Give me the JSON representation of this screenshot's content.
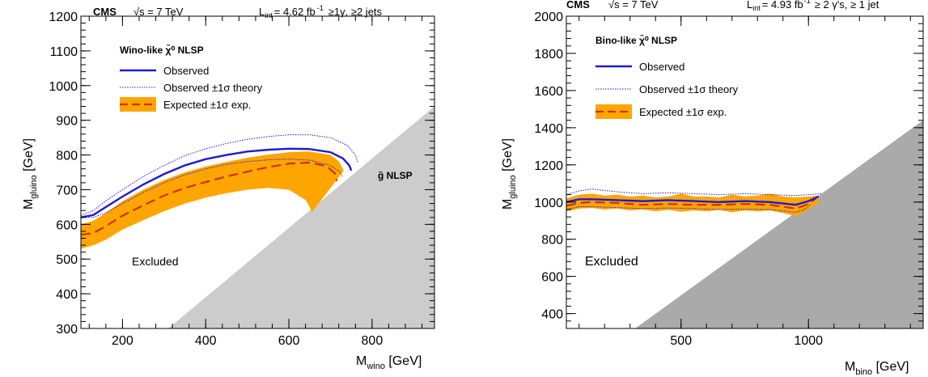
{
  "chart_data": [
    {
      "type": "line",
      "header": {
        "experiment": "CMS",
        "energy": "√s = 7 TeV",
        "lumi": "L",
        "lumi_sub": "int",
        "lumi_val": "= 4.62 fb",
        "lumi_sup": "-1",
        "selection": "≥1γ, ≥2 jets"
      },
      "xlabel": "M",
      "xlabel_sub": "wino",
      "xlabel_unit": " [GeV]",
      "ylabel": "M",
      "ylabel_sub": "gluino",
      "ylabel_unit": " [GeV]",
      "xlim": [
        100,
        950
      ],
      "ylim": [
        300,
        1200
      ],
      "xticks": [
        200,
        400,
        600,
        800
      ],
      "xtick_labels": [
        "200",
        "400",
        "600",
        "800"
      ],
      "yticks": [
        300,
        400,
        500,
        600,
        700,
        800,
        900,
        1000,
        1100,
        1200
      ],
      "ytick_labels": [
        "300",
        "400",
        "500",
        "600",
        "700",
        "800",
        "900",
        "1000",
        "1100",
        "1200"
      ],
      "legend": {
        "title": "Wino-like χ̃⁰ NLSP",
        "observed": "Observed",
        "theory": "Observed ±1σ theory",
        "expected": "Expected ±1σ exp."
      },
      "annotations": {
        "excluded": "Excluded",
        "nlsp": "g̃ NLSP"
      },
      "colors": {
        "observed": "#1b1bd6",
        "expected": "#cc3300",
        "band": "#ffa500",
        "region": "#cccccc"
      },
      "series": [
        {
          "name": "Observed",
          "x": [
            100,
            130,
            160,
            200,
            250,
            300,
            350,
            400,
            450,
            500,
            550,
            600,
            650,
            700,
            730,
            745,
            750
          ],
          "y": [
            620,
            627,
            650,
            680,
            715,
            745,
            770,
            788,
            800,
            810,
            815,
            818,
            817,
            808,
            790,
            770,
            755
          ]
        },
        {
          "name": "Observed ±1σ theory",
          "role": "upper",
          "x": [
            100,
            130,
            160,
            200,
            250,
            300,
            350,
            400,
            450,
            500,
            550,
            600,
            650,
            700,
            740,
            760,
            765
          ],
          "y": [
            625,
            640,
            668,
            700,
            738,
            770,
            798,
            818,
            833,
            845,
            853,
            858,
            858,
            850,
            828,
            800,
            780
          ]
        },
        {
          "name": "Observed ±1σ theory",
          "role": "lower",
          "x": [
            100,
            130,
            160,
            200,
            250,
            300,
            350,
            400,
            450,
            500,
            550,
            600,
            650,
            700,
            722,
            730
          ],
          "y": [
            620,
            620,
            633,
            660,
            692,
            720,
            743,
            760,
            773,
            781,
            786,
            788,
            785,
            770,
            752,
            735
          ]
        },
        {
          "name": "Expected ±1σ exp.",
          "x": [
            100,
            130,
            160,
            200,
            250,
            300,
            350,
            400,
            450,
            500,
            550,
            600,
            650,
            690,
            710,
            715
          ],
          "y": [
            570,
            575,
            595,
            625,
            655,
            683,
            705,
            722,
            738,
            752,
            765,
            775,
            778,
            768,
            748,
            725
          ]
        },
        {
          "name": "band_upper",
          "x": [
            100,
            130,
            160,
            200,
            250,
            300,
            350,
            400,
            450,
            500,
            550,
            600,
            650,
            700,
            720,
            732
          ],
          "y": [
            600,
            610,
            633,
            667,
            700,
            728,
            750,
            767,
            780,
            792,
            801,
            808,
            810,
            800,
            782,
            755
          ]
        },
        {
          "name": "band_lower",
          "x": [
            100,
            130,
            160,
            200,
            250,
            300,
            350,
            400,
            450,
            500,
            550,
            600,
            640,
            650,
            655
          ],
          "y": [
            530,
            540,
            556,
            585,
            612,
            638,
            660,
            677,
            690,
            700,
            705,
            700,
            670,
            650,
            635
          ]
        }
      ],
      "excluded_region": {
        "x": [
          310,
          950,
          950,
          310
        ],
        "y": [
          300,
          940,
          300,
          300
        ]
      }
    },
    {
      "type": "line",
      "header": {
        "experiment": "CMS",
        "energy": "√s = 7 TeV",
        "lumi": "L",
        "lumi_sub": "int",
        "lumi_val": "= 4.93 fb",
        "lumi_sup": "-1",
        "selection": "≥ 2 γ's,  ≥ 1 jet"
      },
      "xlabel": "M",
      "xlabel_sub": "bino",
      "xlabel_unit": " [GeV]",
      "ylabel": "M",
      "ylabel_sub": "gluino",
      "ylabel_unit": " [GeV]",
      "xlim": [
        50,
        1450
      ],
      "ylim": [
        320,
        2000
      ],
      "xticks": [
        500,
        1000
      ],
      "xtick_labels": [
        "500",
        "1000"
      ],
      "yticks": [
        400,
        600,
        800,
        1000,
        1200,
        1400,
        1600,
        1800,
        2000
      ],
      "ytick_labels": [
        "400",
        "600",
        "800",
        "1000",
        "1200",
        "1400",
        "1600",
        "1800",
        "2000"
      ],
      "legend": {
        "title": "Bino-like χ̃⁰ NLSP",
        "observed": "Observed",
        "theory": "Observed ±1σ theory",
        "expected": "Expected ±1σ exp."
      },
      "annotations": {
        "excluded": "Excluded"
      },
      "colors": {
        "observed": "#1b1bd6",
        "expected": "#cc3300",
        "band": "#ffa500",
        "region": "#aaaaaa"
      },
      "series": [
        {
          "name": "Observed",
          "x": [
            50,
            100,
            150,
            250,
            350,
            450,
            550,
            650,
            750,
            850,
            950,
            1000,
            1040
          ],
          "y": [
            1000,
            1015,
            1015,
            1010,
            1005,
            1010,
            1005,
            1000,
            1005,
            1000,
            985,
            1005,
            1030
          ]
        },
        {
          "name": "Observed ±1σ theory",
          "role": "upper",
          "x": [
            50,
            100,
            150,
            250,
            350,
            450,
            550,
            650,
            750,
            850,
            950,
            1000,
            1050
          ],
          "y": [
            1040,
            1060,
            1070,
            1055,
            1045,
            1050,
            1045,
            1040,
            1045,
            1040,
            1035,
            1040,
            1045
          ]
        },
        {
          "name": "Observed ±1σ theory",
          "role": "lower",
          "x": [
            50,
            100,
            150,
            250,
            350,
            450,
            550,
            650,
            750,
            850,
            950,
            985,
            1010
          ],
          "y": [
            960,
            975,
            975,
            970,
            965,
            968,
            965,
            960,
            962,
            960,
            945,
            960,
            990
          ]
        },
        {
          "name": "Expected ±1σ exp.",
          "x": [
            50,
            100,
            150,
            250,
            350,
            450,
            550,
            650,
            750,
            850,
            950,
            1000,
            1030
          ],
          "y": [
            980,
            995,
            1000,
            995,
            985,
            990,
            985,
            985,
            990,
            985,
            965,
            990,
            1020
          ]
        },
        {
          "name": "band_upper",
          "x": [
            50,
            100,
            150,
            200,
            250,
            300,
            350,
            400,
            450,
            500,
            550,
            600,
            650,
            700,
            750,
            800,
            850,
            900,
            950,
            1000,
            1040
          ],
          "y": [
            1020,
            1040,
            1045,
            1035,
            1040,
            1030,
            1035,
            1025,
            1030,
            1045,
            1030,
            1030,
            1025,
            1040,
            1030,
            1035,
            1045,
            1030,
            1025,
            1030,
            1035
          ]
        },
        {
          "name": "band_lower",
          "x": [
            50,
            100,
            150,
            200,
            250,
            300,
            350,
            400,
            450,
            500,
            550,
            600,
            650,
            700,
            750,
            800,
            850,
            900,
            950,
            1000,
            1040
          ],
          "y": [
            950,
            965,
            968,
            960,
            965,
            955,
            960,
            950,
            958,
            948,
            955,
            950,
            958,
            945,
            955,
            950,
            955,
            940,
            925,
            960,
            1000
          ]
        }
      ],
      "excluded_region": {
        "x": [
          320,
          1450,
          1450,
          320
        ],
        "y": [
          320,
          1440,
          320,
          320
        ]
      }
    }
  ]
}
